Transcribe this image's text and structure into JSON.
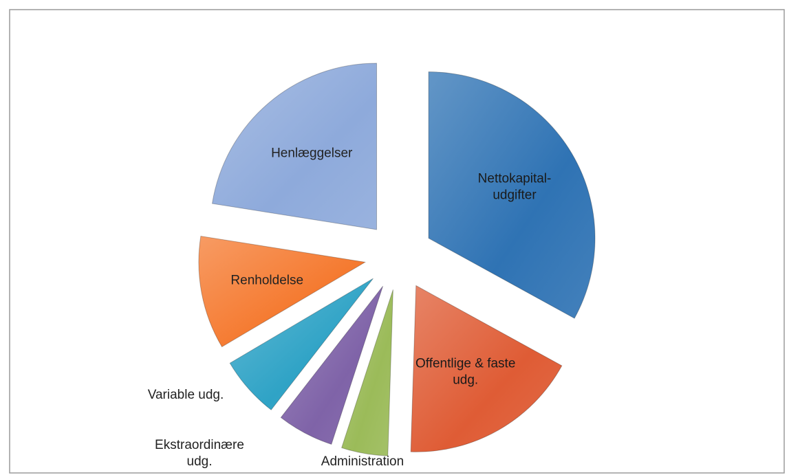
{
  "chart_data": {
    "type": "pie",
    "categories": [
      "Nettokapital-\nudgifter",
      "Offentlige & faste\nudg.",
      "Administration",
      "Ekstraordinære\nudg.",
      "Variable udg.",
      "Renholdelse",
      "Henlæggelser"
    ],
    "values": [
      33,
      17.5,
      4.5,
      5.5,
      6,
      11,
      22.5
    ],
    "colors": [
      "#2f73b4",
      "#df5c35",
      "#9bbb59",
      "#7f63a8",
      "#2fa3c6",
      "#f57a30",
      "#8eaadb"
    ]
  }
}
